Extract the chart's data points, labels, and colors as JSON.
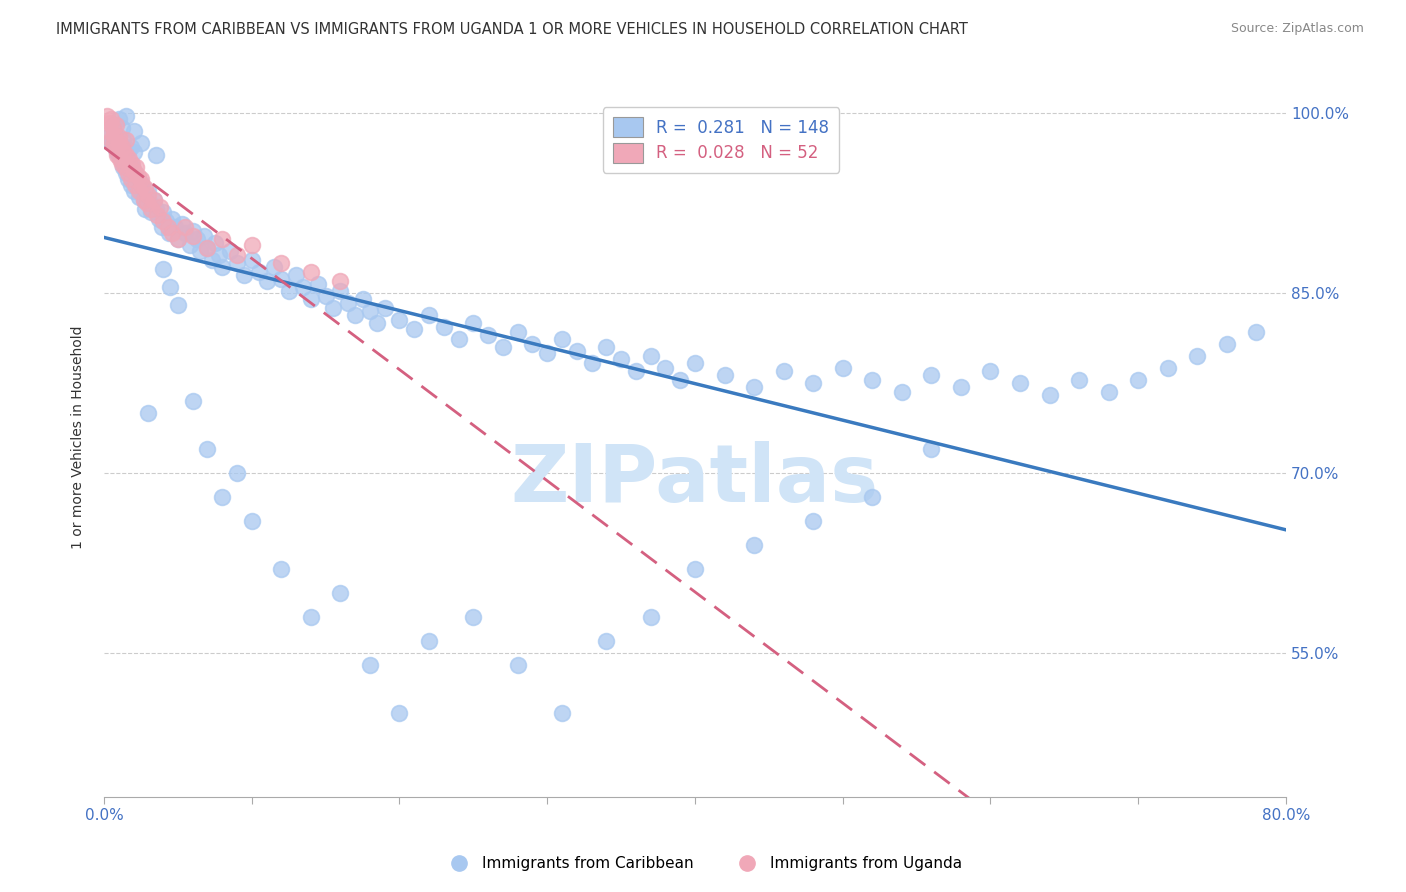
{
  "title": "IMMIGRANTS FROM CARIBBEAN VS IMMIGRANTS FROM UGANDA 1 OR MORE VEHICLES IN HOUSEHOLD CORRELATION CHART",
  "source": "Source: ZipAtlas.com",
  "xlabel": "",
  "ylabel": "1 or more Vehicles in Household",
  "xlim": [
    0.0,
    0.8
  ],
  "ylim": [
    0.43,
    1.03
  ],
  "yticks": [
    0.55,
    0.7,
    0.85,
    1.0
  ],
  "ytick_labels": [
    "55.0%",
    "70.0%",
    "85.0%",
    "100.0%"
  ],
  "xticks": [
    0.0,
    0.1,
    0.2,
    0.3,
    0.4,
    0.5,
    0.6,
    0.7,
    0.8
  ],
  "xtick_labels": [
    "0.0%",
    "",
    "",
    "",
    "",
    "",
    "",
    "",
    "80.0%"
  ],
  "caribbean_R": 0.281,
  "caribbean_N": 148,
  "uganda_R": 0.028,
  "uganda_N": 52,
  "caribbean_color": "#a8c8f0",
  "uganda_color": "#f0a8b8",
  "caribbean_line_color": "#3a7abf",
  "uganda_line_color": "#d46080",
  "background_color": "#ffffff",
  "watermark": "ZIPatlas",
  "watermark_color": "#d0e4f7",
  "title_fontsize": 11,
  "axis_label_fontsize": 10,
  "tick_fontsize": 11,
  "tick_color": "#4472c4",
  "carib_scatter_x": [
    0.003,
    0.005,
    0.006,
    0.007,
    0.008,
    0.009,
    0.01,
    0.01,
    0.011,
    0.012,
    0.012,
    0.013,
    0.013,
    0.014,
    0.015,
    0.015,
    0.016,
    0.016,
    0.017,
    0.018,
    0.018,
    0.019,
    0.02,
    0.02,
    0.021,
    0.022,
    0.023,
    0.024,
    0.025,
    0.026,
    0.027,
    0.028,
    0.03,
    0.031,
    0.032,
    0.034,
    0.035,
    0.037,
    0.039,
    0.04,
    0.042,
    0.044,
    0.046,
    0.048,
    0.05,
    0.053,
    0.055,
    0.058,
    0.06,
    0.063,
    0.065,
    0.068,
    0.07,
    0.073,
    0.075,
    0.078,
    0.08,
    0.085,
    0.09,
    0.095,
    0.1,
    0.105,
    0.11,
    0.115,
    0.12,
    0.125,
    0.13,
    0.135,
    0.14,
    0.145,
    0.15,
    0.155,
    0.16,
    0.165,
    0.17,
    0.175,
    0.18,
    0.185,
    0.19,
    0.2,
    0.21,
    0.22,
    0.23,
    0.24,
    0.25,
    0.26,
    0.27,
    0.28,
    0.29,
    0.3,
    0.31,
    0.32,
    0.33,
    0.34,
    0.35,
    0.36,
    0.37,
    0.38,
    0.39,
    0.4,
    0.42,
    0.44,
    0.46,
    0.48,
    0.5,
    0.52,
    0.54,
    0.56,
    0.58,
    0.6,
    0.62,
    0.64,
    0.66,
    0.68,
    0.7,
    0.72,
    0.74,
    0.76,
    0.78,
    0.015,
    0.02,
    0.025,
    0.03,
    0.035,
    0.04,
    0.045,
    0.05,
    0.06,
    0.07,
    0.08,
    0.09,
    0.1,
    0.12,
    0.14,
    0.16,
    0.18,
    0.2,
    0.22,
    0.25,
    0.28,
    0.31,
    0.34,
    0.37,
    0.4,
    0.44,
    0.48,
    0.52,
    0.56
  ],
  "carib_scatter_y": [
    0.98,
    0.975,
    0.99,
    0.985,
    0.97,
    0.968,
    0.995,
    0.965,
    0.975,
    0.988,
    0.96,
    0.978,
    0.955,
    0.972,
    0.965,
    0.95,
    0.968,
    0.945,
    0.958,
    0.972,
    0.94,
    0.955,
    0.968,
    0.935,
    0.95,
    0.945,
    0.938,
    0.93,
    0.942,
    0.935,
    0.928,
    0.92,
    0.935,
    0.925,
    0.918,
    0.928,
    0.92,
    0.912,
    0.905,
    0.918,
    0.91,
    0.9,
    0.912,
    0.905,
    0.895,
    0.908,
    0.9,
    0.89,
    0.902,
    0.895,
    0.885,
    0.898,
    0.888,
    0.878,
    0.892,
    0.882,
    0.872,
    0.885,
    0.875,
    0.865,
    0.878,
    0.868,
    0.86,
    0.872,
    0.862,
    0.852,
    0.865,
    0.855,
    0.845,
    0.858,
    0.848,
    0.838,
    0.852,
    0.842,
    0.832,
    0.845,
    0.835,
    0.825,
    0.838,
    0.828,
    0.82,
    0.832,
    0.822,
    0.812,
    0.825,
    0.815,
    0.805,
    0.818,
    0.808,
    0.8,
    0.812,
    0.802,
    0.792,
    0.805,
    0.795,
    0.785,
    0.798,
    0.788,
    0.778,
    0.792,
    0.782,
    0.772,
    0.785,
    0.775,
    0.788,
    0.778,
    0.768,
    0.782,
    0.772,
    0.785,
    0.775,
    0.765,
    0.778,
    0.768,
    0.778,
    0.788,
    0.798,
    0.808,
    0.818,
    0.998,
    0.985,
    0.975,
    0.75,
    0.965,
    0.87,
    0.855,
    0.84,
    0.76,
    0.72,
    0.68,
    0.7,
    0.66,
    0.62,
    0.58,
    0.6,
    0.54,
    0.5,
    0.56,
    0.58,
    0.54,
    0.5,
    0.56,
    0.58,
    0.62,
    0.64,
    0.66,
    0.68,
    0.72
  ],
  "uganda_scatter_x": [
    0.002,
    0.003,
    0.004,
    0.005,
    0.005,
    0.006,
    0.007,
    0.007,
    0.008,
    0.008,
    0.009,
    0.01,
    0.01,
    0.011,
    0.012,
    0.012,
    0.013,
    0.014,
    0.015,
    0.015,
    0.016,
    0.017,
    0.018,
    0.019,
    0.02,
    0.021,
    0.022,
    0.023,
    0.024,
    0.025,
    0.026,
    0.027,
    0.028,
    0.029,
    0.03,
    0.032,
    0.034,
    0.036,
    0.038,
    0.04,
    0.043,
    0.046,
    0.05,
    0.055,
    0.06,
    0.07,
    0.08,
    0.09,
    0.1,
    0.12,
    0.14,
    0.16
  ],
  "uganda_scatter_y": [
    0.998,
    0.985,
    0.992,
    0.978,
    0.995,
    0.988,
    0.975,
    0.982,
    0.97,
    0.99,
    0.965,
    0.98,
    0.975,
    0.962,
    0.972,
    0.958,
    0.968,
    0.955,
    0.965,
    0.978,
    0.95,
    0.962,
    0.945,
    0.958,
    0.952,
    0.94,
    0.955,
    0.948,
    0.935,
    0.945,
    0.94,
    0.928,
    0.938,
    0.925,
    0.932,
    0.92,
    0.928,
    0.915,
    0.922,
    0.91,
    0.905,
    0.9,
    0.895,
    0.905,
    0.898,
    0.888,
    0.895,
    0.882,
    0.89,
    0.875,
    0.868,
    0.86
  ]
}
